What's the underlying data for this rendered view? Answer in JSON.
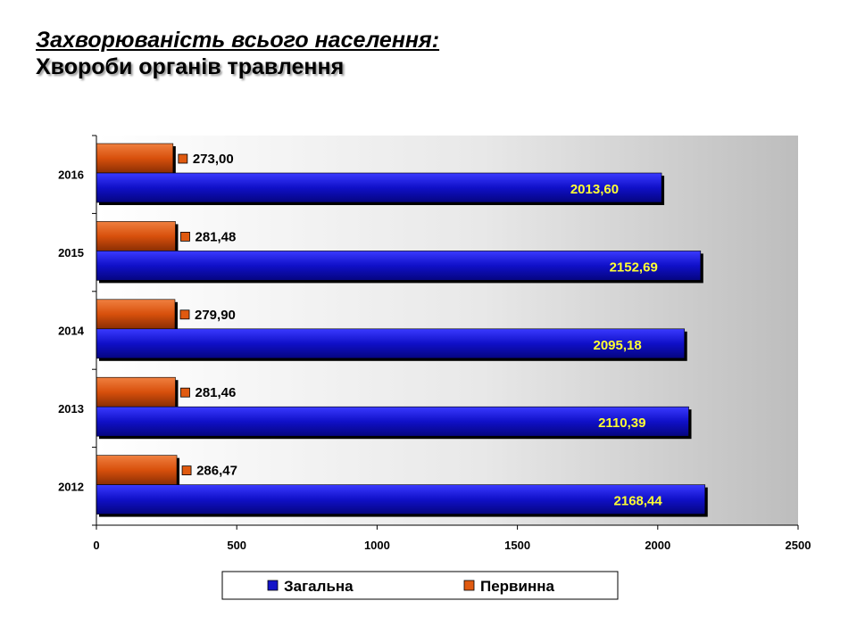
{
  "title": {
    "line1": "Захворюваність всього населення:",
    "line2": "Хвороби органів травлення"
  },
  "chart_data": {
    "type": "bar",
    "orientation": "horizontal",
    "categories": [
      "2012",
      "2013",
      "2014",
      "2015",
      "2016"
    ],
    "series": [
      {
        "name": "Загальна",
        "color": "#1414c8",
        "values": [
          2168.44,
          2110.39,
          2095.18,
          2152.69,
          2013.6
        ],
        "labels": [
          "2168,44",
          "2110,39",
          "2095,18",
          "2152,69",
          "2013,60"
        ],
        "label_color": "#ffff33"
      },
      {
        "name": "Первинна",
        "color": "#e05a10",
        "values": [
          286.47,
          281.46,
          279.9,
          281.48,
          273.0
        ],
        "labels": [
          "286,47",
          "281,46",
          "279,90",
          "281,48",
          "273,00"
        ],
        "label_color": "#000000"
      }
    ],
    "xlim": [
      0,
      2500
    ],
    "xticks": [
      0,
      500,
      1000,
      1500,
      2000,
      2500
    ],
    "xlabel": "",
    "ylabel": "",
    "grid": false,
    "legend_position": "bottom"
  }
}
